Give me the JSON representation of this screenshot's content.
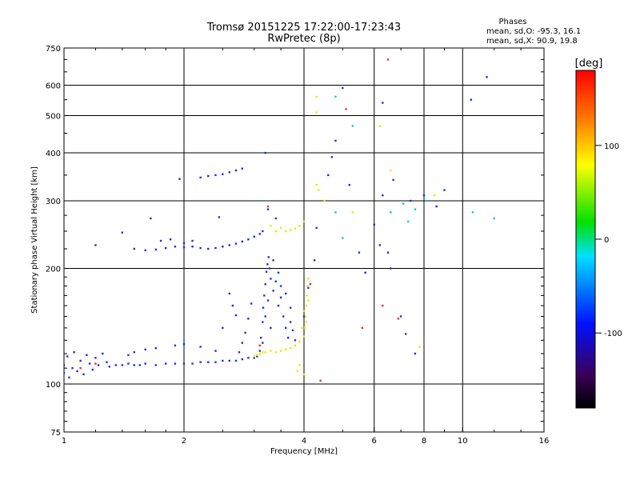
{
  "chart_data": {
    "type": "scatter",
    "title": "Tromsø 20151225 17:22:00-17:23:43",
    "subtitle": "RwPretec (8p)",
    "stats": {
      "heading": "Phases",
      "line_o": "mean, sd,O: -95.3, 16.1",
      "line_x": "mean, sd,X:  90.9, 19.8"
    },
    "xlabel": "Frequency [MHz]",
    "ylabel": "Stationary phase Virtual Height [km]",
    "xscale": "log",
    "yscale": "log",
    "xlim": [
      1,
      16
    ],
    "ylim": [
      75,
      750
    ],
    "grid": true,
    "xticks": [
      {
        "value": 1,
        "label": "1"
      },
      {
        "value": 2,
        "label": "2"
      },
      {
        "value": 4,
        "label": "4"
      },
      {
        "value": 6,
        "label": "6"
      },
      {
        "value": 8,
        "label": "8"
      },
      {
        "value": 10,
        "label": "10"
      },
      {
        "value": 16,
        "label": "16"
      }
    ],
    "yticks": [
      {
        "value": 75,
        "label": "75"
      },
      {
        "value": 100,
        "label": "100"
      },
      {
        "value": 200,
        "label": "200"
      },
      {
        "value": 300,
        "label": "300"
      },
      {
        "value": 400,
        "label": "400"
      },
      {
        "value": 500,
        "label": "500"
      },
      {
        "value": 600,
        "label": "600"
      },
      {
        "value": 750,
        "label": "750"
      }
    ],
    "colorbar": {
      "label": "[deg]",
      "range": [
        -180,
        180
      ],
      "ticks": [
        {
          "value": 100,
          "label": "100"
        },
        {
          "value": 0,
          "label": "0"
        },
        {
          "value": -100,
          "label": "-100"
        }
      ]
    },
    "series": [
      {
        "kind": "ordinary",
        "color": "#1e2ee6",
        "points": [
          [
            1.0,
            107
          ],
          [
            1.0,
            112
          ],
          [
            1.02,
            118
          ],
          [
            1.03,
            104
          ],
          [
            1.05,
            110
          ],
          [
            1.06,
            121
          ],
          [
            1.08,
            108
          ],
          [
            1.1,
            115
          ],
          [
            1.12,
            106
          ],
          [
            1.14,
            119
          ],
          [
            1.16,
            113
          ],
          [
            1.18,
            109
          ],
          [
            1.2,
            117
          ],
          [
            1.22,
            112
          ],
          [
            1.25,
            120
          ],
          [
            1.28,
            114
          ],
          [
            1.3,
            111
          ],
          [
            1.35,
            112
          ],
          [
            1.4,
            112
          ],
          [
            1.45,
            113
          ],
          [
            1.5,
            112
          ],
          [
            1.55,
            112
          ],
          [
            1.6,
            113
          ],
          [
            1.7,
            112
          ],
          [
            1.8,
            113
          ],
          [
            1.9,
            113
          ],
          [
            2.0,
            113
          ],
          [
            2.1,
            113
          ],
          [
            2.2,
            114
          ],
          [
            2.3,
            114
          ],
          [
            2.4,
            114
          ],
          [
            2.5,
            115
          ],
          [
            2.6,
            115
          ],
          [
            2.7,
            115
          ],
          [
            2.8,
            116
          ],
          [
            2.9,
            117
          ],
          [
            3.0,
            117
          ],
          [
            3.05,
            118
          ],
          [
            2.75,
            121
          ],
          [
            2.8,
            128
          ],
          [
            2.85,
            136
          ],
          [
            2.9,
            148
          ],
          [
            2.95,
            162
          ],
          [
            2.7,
            151
          ],
          [
            2.65,
            160
          ],
          [
            2.6,
            172
          ],
          [
            2.5,
            140
          ],
          [
            2.4,
            122
          ],
          [
            2.2,
            125
          ],
          [
            2.0,
            127
          ],
          [
            1.9,
            126
          ],
          [
            1.7,
            124
          ],
          [
            1.6,
            123
          ],
          [
            1.5,
            121
          ],
          [
            1.45,
            119
          ],
          [
            3.1,
            122
          ],
          [
            3.12,
            132
          ],
          [
            3.15,
            145
          ],
          [
            3.16,
            158
          ],
          [
            3.18,
            170
          ],
          [
            3.2,
            182
          ],
          [
            3.22,
            196
          ],
          [
            3.24,
            205
          ],
          [
            3.26,
            214
          ],
          [
            3.15,
            128
          ],
          [
            3.2,
            150
          ],
          [
            3.25,
            165
          ],
          [
            3.3,
            140
          ],
          [
            3.35,
            175
          ],
          [
            3.4,
            185
          ],
          [
            3.45,
            160
          ],
          [
            3.5,
            168
          ],
          [
            3.55,
            150
          ],
          [
            3.6,
            140
          ],
          [
            3.65,
            132
          ],
          [
            3.7,
            145
          ],
          [
            3.75,
            138
          ],
          [
            3.8,
            130
          ],
          [
            3.3,
            188
          ],
          [
            3.28,
            200
          ],
          [
            3.35,
            210
          ],
          [
            3.45,
            195
          ],
          [
            3.5,
            180
          ],
          [
            3.6,
            172
          ],
          [
            3.7,
            158
          ],
          [
            1.5,
            225
          ],
          [
            1.6,
            223
          ],
          [
            1.7,
            224
          ],
          [
            1.8,
            226
          ],
          [
            1.9,
            228
          ],
          [
            2.0,
            227
          ],
          [
            2.1,
            228
          ],
          [
            2.2,
            226
          ],
          [
            2.3,
            225
          ],
          [
            2.4,
            226
          ],
          [
            2.5,
            228
          ],
          [
            2.6,
            230
          ],
          [
            2.7,
            232
          ],
          [
            2.8,
            235
          ],
          [
            2.9,
            238
          ],
          [
            3.0,
            242
          ],
          [
            3.1,
            246
          ],
          [
            3.15,
            250
          ],
          [
            1.75,
            236
          ],
          [
            1.85,
            238
          ],
          [
            2.0,
            233
          ],
          [
            2.1,
            236
          ],
          [
            2.2,
            345
          ],
          [
            2.3,
            348
          ],
          [
            2.4,
            350
          ],
          [
            2.5,
            352
          ],
          [
            2.6,
            356
          ],
          [
            2.7,
            360
          ],
          [
            2.8,
            364
          ],
          [
            1.95,
            342
          ],
          [
            3.2,
            400
          ],
          [
            1.2,
            230
          ],
          [
            1.4,
            248
          ],
          [
            1.65,
            270
          ],
          [
            2.45,
            272
          ],
          [
            3.25,
            285
          ],
          [
            3.4,
            270
          ],
          [
            4.0,
            150
          ],
          [
            4.1,
            178
          ],
          [
            4.25,
            210
          ],
          [
            4.3,
            255
          ],
          [
            4.6,
            350
          ],
          [
            4.7,
            390
          ],
          [
            4.8,
            430
          ],
          [
            5.0,
            590
          ],
          [
            5.2,
            330
          ],
          [
            5.5,
            220
          ],
          [
            5.7,
            195
          ],
          [
            6.0,
            260
          ],
          [
            6.2,
            230
          ],
          [
            6.3,
            540
          ],
          [
            6.3,
            310
          ],
          [
            6.5,
            220
          ],
          [
            6.7,
            340
          ],
          [
            6.6,
            200
          ],
          [
            7.0,
            150
          ],
          [
            7.2,
            135
          ],
          [
            7.4,
            300
          ],
          [
            7.6,
            120
          ],
          [
            8.0,
            310
          ],
          [
            8.6,
            290
          ],
          [
            9.0,
            320
          ],
          [
            10.5,
            550
          ],
          [
            11.5,
            630
          ]
        ]
      },
      {
        "kind": "extraordinary",
        "color": "#f2e400",
        "points": [
          [
            3.0,
            118
          ],
          [
            3.05,
            119
          ],
          [
            3.1,
            120
          ],
          [
            3.15,
            121
          ],
          [
            3.2,
            121
          ],
          [
            3.3,
            122
          ],
          [
            3.4,
            121
          ],
          [
            3.5,
            122
          ],
          [
            3.6,
            123
          ],
          [
            3.7,
            124
          ],
          [
            3.8,
            126
          ],
          [
            3.9,
            129
          ],
          [
            4.0,
            133
          ],
          [
            4.02,
            140
          ],
          [
            4.04,
            150
          ],
          [
            4.05,
            160
          ],
          [
            4.07,
            170
          ],
          [
            4.08,
            180
          ],
          [
            4.1,
            188
          ],
          [
            4.05,
            145
          ],
          [
            4.0,
            155
          ],
          [
            4.1,
            165
          ],
          [
            3.95,
            140
          ],
          [
            3.5,
            255
          ],
          [
            3.6,
            250
          ],
          [
            3.7,
            252
          ],
          [
            3.8,
            254
          ],
          [
            3.9,
            258
          ],
          [
            4.0,
            265
          ],
          [
            3.4,
            250
          ],
          [
            3.3,
            258
          ],
          [
            3.9,
            112
          ],
          [
            3.85,
            108
          ],
          [
            4.0,
            106
          ],
          [
            4.3,
            560
          ],
          [
            4.3,
            510
          ],
          [
            4.3,
            330
          ],
          [
            4.35,
            320
          ],
          [
            4.5,
            300
          ],
          [
            5.3,
            280
          ],
          [
            6.2,
            470
          ],
          [
            6.6,
            360
          ],
          [
            7.8,
            125
          ],
          [
            8.5,
            310
          ]
        ]
      },
      {
        "kind": "other",
        "color": "#e0302a",
        "points": [
          [
            1.1,
            110
          ],
          [
            1.2,
            113
          ],
          [
            3.1,
            126
          ],
          [
            3.25,
            290
          ],
          [
            4.15,
            182
          ],
          [
            4.4,
            102
          ],
          [
            5.1,
            520
          ],
          [
            5.6,
            140
          ],
          [
            6.3,
            160
          ],
          [
            6.5,
            700
          ],
          [
            6.9,
            148
          ]
        ]
      },
      {
        "kind": "other",
        "color": "#00c8e0",
        "points": [
          [
            4.8,
            560
          ],
          [
            4.8,
            280
          ],
          [
            5.0,
            240
          ],
          [
            5.3,
            470
          ],
          [
            6.6,
            280
          ],
          [
            7.1,
            295
          ],
          [
            7.3,
            265
          ],
          [
            7.6,
            285
          ],
          [
            8.1,
            300
          ],
          [
            10.6,
            280
          ],
          [
            12.0,
            270
          ]
        ]
      }
    ]
  }
}
